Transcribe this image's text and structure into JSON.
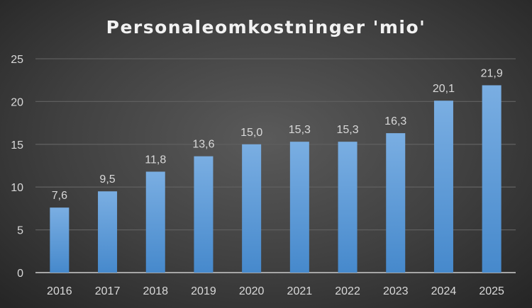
{
  "chart_data": {
    "type": "bar",
    "title": "Personaleomkostninger 'mio'",
    "xlabel": "",
    "ylabel": "",
    "categories": [
      "2016",
      "2017",
      "2018",
      "2019",
      "2020",
      "2021",
      "2022",
      "2023",
      "2024",
      "2025"
    ],
    "values": [
      7.6,
      9.5,
      11.8,
      13.6,
      15.0,
      15.3,
      15.3,
      16.3,
      20.1,
      21.9
    ],
    "data_labels": [
      "7,6",
      "9,5",
      "11,8",
      "13,6",
      "15,0",
      "15,3",
      "15,3",
      "16,3",
      "20,1",
      "21,9"
    ],
    "ylim": [
      0,
      25
    ],
    "yticks": [
      0,
      5,
      10,
      15,
      20,
      25
    ],
    "grid": true,
    "legend": "none",
    "colors": {
      "bar_top": "#7aaee2",
      "bar_bottom": "#4689cc",
      "grid": "#5e5e5e",
      "axis": "#a6a6a6"
    }
  }
}
